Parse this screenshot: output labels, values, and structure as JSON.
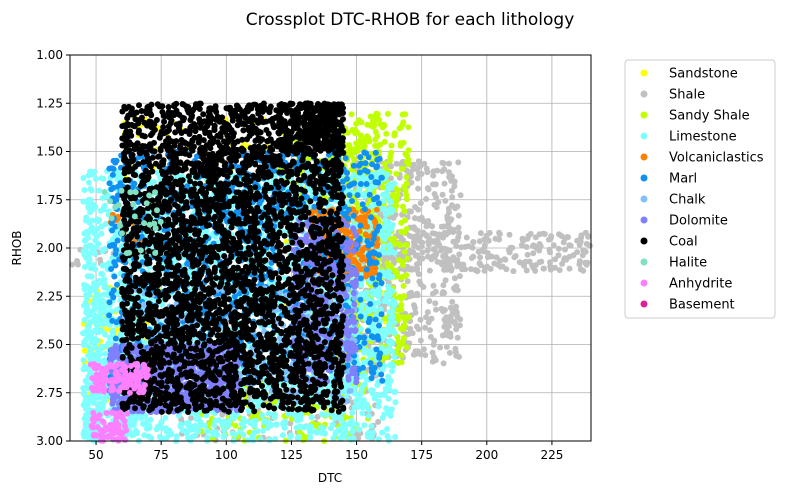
{
  "chart_data": {
    "type": "scatter",
    "title": "Crossplot DTC-RHOB for each lithology",
    "xlabel": "DTC",
    "ylabel": "RHOB",
    "xlim": [
      40,
      240
    ],
    "ylim": [
      3.0,
      1.0
    ],
    "y_inverted": true,
    "grid": true,
    "legend_position": "outside-right",
    "x_ticks": [
      "50",
      "75",
      "100",
      "125",
      "150",
      "175",
      "200",
      "225"
    ],
    "x_tick_values": [
      50,
      75,
      100,
      125,
      150,
      175,
      200,
      225
    ],
    "y_ticks": [
      "1.00",
      "1.25",
      "1.50",
      "1.75",
      "2.00",
      "2.25",
      "2.50",
      "2.75",
      "3.00"
    ],
    "y_tick_values": [
      1.0,
      1.25,
      1.5,
      1.75,
      2.0,
      2.25,
      2.5,
      2.75,
      3.0
    ],
    "series": [
      {
        "name": "Sandstone",
        "color": "#ffff00",
        "clusters": [
          {
            "x": [
              45,
              75
            ],
            "y": [
              2.2,
              2.8
            ],
            "n": 140
          },
          {
            "x": [
              60,
              120
            ],
            "y": [
              1.3,
              1.7
            ],
            "n": 60
          },
          {
            "x": [
              120,
              165
            ],
            "y": [
              1.9,
              2.4
            ],
            "n": 60
          }
        ]
      },
      {
        "name": "Shale",
        "color": "#c0c0c0",
        "clusters": [
          {
            "x": [
              130,
              190
            ],
            "y": [
              1.55,
              2.6
            ],
            "n": 700
          },
          {
            "x": [
              150,
              240
            ],
            "y": [
              1.92,
              2.12
            ],
            "n": 260
          },
          {
            "x": [
              40,
              70
            ],
            "y": [
              2.0,
              2.1
            ],
            "n": 40
          },
          {
            "x": [
              80,
              160
            ],
            "y": [
              2.6,
              3.0
            ],
            "n": 120
          }
        ]
      },
      {
        "name": "Sandy Shale",
        "color": "#c0ff00",
        "clusters": [
          {
            "x": [
              140,
              170
            ],
            "y": [
              1.3,
              2.6
            ],
            "n": 500
          },
          {
            "x": [
              90,
              155
            ],
            "y": [
              2.6,
              3.0
            ],
            "n": 200
          },
          {
            "x": [
              120,
              160
            ],
            "y": [
              1.4,
              1.8
            ],
            "n": 120
          }
        ]
      },
      {
        "name": "Limestone",
        "color": "#80ffff",
        "clusters": [
          {
            "x": [
              45,
              165
            ],
            "y": [
              1.6,
              3.0
            ],
            "n": 2600
          },
          {
            "x": [
              45,
              70
            ],
            "y": [
              2.2,
              3.0
            ],
            "n": 300
          }
        ]
      },
      {
        "name": "Volcaniclastics",
        "color": "#ff8000",
        "clusters": [
          {
            "x": [
              132,
              158
            ],
            "y": [
              1.8,
              2.15
            ],
            "n": 220
          },
          {
            "x": [
              55,
              70
            ],
            "y": [
              1.8,
              2.0
            ],
            "n": 15
          }
        ]
      },
      {
        "name": "Marl",
        "color": "#1090f0",
        "clusters": [
          {
            "x": [
              55,
              160
            ],
            "y": [
              1.5,
              2.7
            ],
            "n": 1100
          }
        ]
      },
      {
        "name": "Chalk",
        "color": "#80c0ff",
        "clusters": [
          {
            "x": [
              60,
              150
            ],
            "y": [
              2.2,
              2.8
            ],
            "n": 400
          }
        ]
      },
      {
        "name": "Dolomite",
        "color": "#8080ff",
        "clusters": [
          {
            "x": [
              55,
              105
            ],
            "y": [
              2.5,
              2.85
            ],
            "n": 700
          },
          {
            "x": [
              125,
              150
            ],
            "y": [
              1.85,
              2.7
            ],
            "n": 350
          }
        ]
      },
      {
        "name": "Coal",
        "color": "#000000",
        "clusters": [
          {
            "x": [
              60,
              145
            ],
            "y": [
              1.25,
              2.85
            ],
            "n": 3600
          },
          {
            "x": [
              120,
              145
            ],
            "y": [
              1.25,
              1.5
            ],
            "n": 250
          }
        ]
      },
      {
        "name": "Halite",
        "color": "#80e0c0",
        "clusters": [
          {
            "x": [
              52,
              75
            ],
            "y": [
              1.7,
              2.05
            ],
            "n": 25
          }
        ]
      },
      {
        "name": "Anhydrite",
        "color": "#ff80ff",
        "clusters": [
          {
            "x": [
              48,
              70
            ],
            "y": [
              2.6,
              2.75
            ],
            "n": 120
          },
          {
            "x": [
              48,
              62
            ],
            "y": [
              2.85,
              3.0
            ],
            "n": 70
          }
        ]
      },
      {
        "name": "Basement",
        "color": "#e0209a",
        "clusters": []
      }
    ]
  }
}
